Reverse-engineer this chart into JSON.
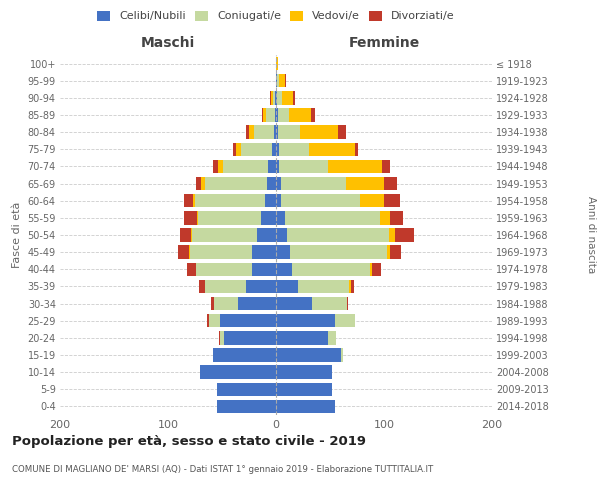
{
  "age_groups": [
    "0-4",
    "5-9",
    "10-14",
    "15-19",
    "20-24",
    "25-29",
    "30-34",
    "35-39",
    "40-44",
    "45-49",
    "50-54",
    "55-59",
    "60-64",
    "65-69",
    "70-74",
    "75-79",
    "80-84",
    "85-89",
    "90-94",
    "95-99",
    "100+"
  ],
  "birth_years": [
    "2014-2018",
    "2009-2013",
    "2004-2008",
    "1999-2003",
    "1994-1998",
    "1989-1993",
    "1984-1988",
    "1979-1983",
    "1974-1978",
    "1969-1973",
    "1964-1968",
    "1959-1963",
    "1954-1958",
    "1949-1953",
    "1944-1948",
    "1939-1943",
    "1934-1938",
    "1929-1933",
    "1924-1928",
    "1919-1923",
    "≤ 1918"
  ],
  "males": {
    "celibi": [
      55,
      55,
      70,
      58,
      48,
      52,
      35,
      28,
      22,
      22,
      18,
      14,
      10,
      8,
      7,
      4,
      2,
      1,
      1,
      0,
      0
    ],
    "coniugati": [
      0,
      0,
      0,
      0,
      4,
      10,
      22,
      38,
      52,
      58,
      60,
      58,
      65,
      58,
      42,
      28,
      18,
      8,
      2,
      0,
      0
    ],
    "vedovi": [
      0,
      0,
      0,
      0,
      0,
      0,
      0,
      0,
      0,
      1,
      1,
      1,
      2,
      3,
      5,
      5,
      5,
      3,
      2,
      0,
      0
    ],
    "divorziati": [
      0,
      0,
      0,
      0,
      1,
      2,
      3,
      5,
      8,
      10,
      10,
      12,
      8,
      5,
      4,
      3,
      3,
      1,
      1,
      0,
      0
    ]
  },
  "females": {
    "nubili": [
      55,
      52,
      52,
      60,
      48,
      55,
      33,
      20,
      15,
      13,
      10,
      8,
      5,
      5,
      3,
      3,
      2,
      2,
      1,
      1,
      0
    ],
    "coniugate": [
      0,
      0,
      0,
      2,
      8,
      18,
      33,
      48,
      72,
      90,
      95,
      88,
      73,
      60,
      45,
      28,
      20,
      10,
      5,
      2,
      0
    ],
    "vedove": [
      0,
      0,
      0,
      0,
      0,
      0,
      0,
      1,
      2,
      3,
      5,
      10,
      22,
      35,
      50,
      42,
      35,
      20,
      10,
      5,
      2
    ],
    "divorziate": [
      0,
      0,
      0,
      0,
      0,
      0,
      1,
      3,
      8,
      10,
      18,
      12,
      15,
      12,
      8,
      3,
      8,
      4,
      2,
      1,
      0
    ]
  },
  "colors": {
    "celibi": "#4472c4",
    "coniugati": "#c5d9a0",
    "vedovi": "#ffc000",
    "divorziati": "#c0392b"
  },
  "title": "Popolazione per età, sesso e stato civile - 2019",
  "subtitle": "COMUNE DI MAGLIANO DE' MARSI (AQ) - Dati ISTAT 1° gennaio 2019 - Elaborazione TUTTITALIA.IT",
  "xlabel_left": "Maschi",
  "xlabel_right": "Femmine",
  "ylabel_left": "Fasce di età",
  "ylabel_right": "Anni di nascita",
  "xlim": 200,
  "background_color": "#ffffff",
  "grid_color": "#cccccc"
}
